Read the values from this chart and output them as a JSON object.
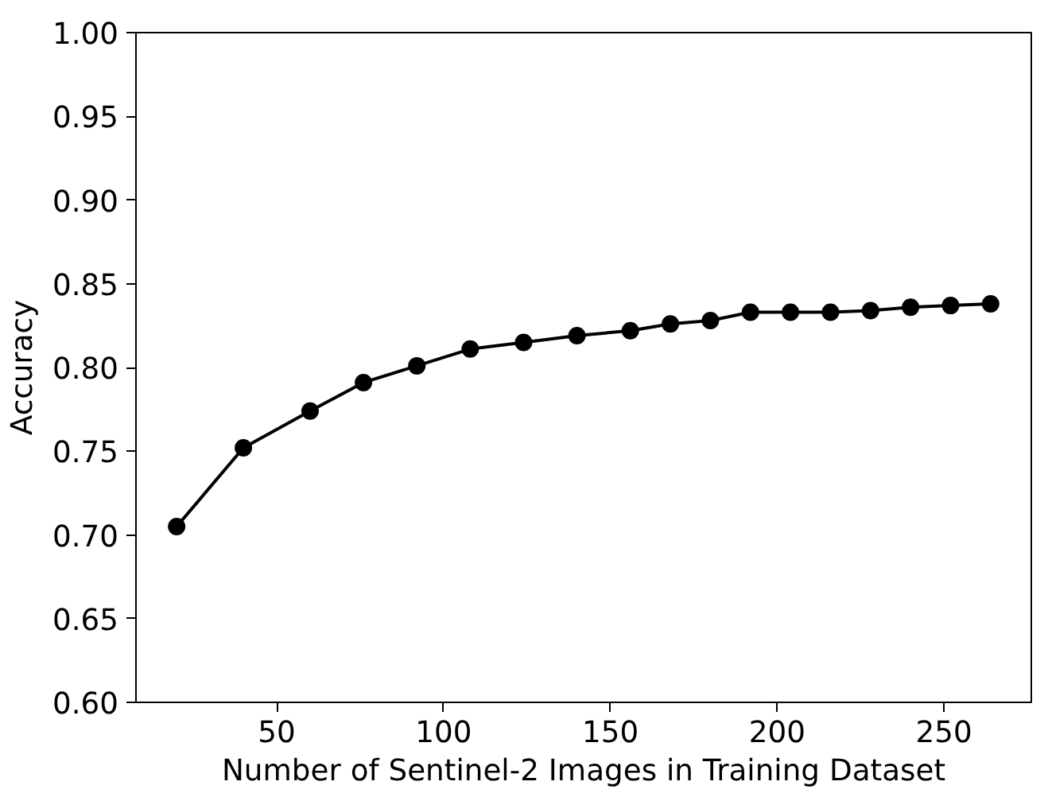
{
  "chart_data": {
    "type": "line",
    "xlabel": "Number of Sentinel-2 Images in Training Dataset",
    "ylabel": "Accuracy",
    "x": [
      20,
      40,
      60,
      76,
      92,
      108,
      124,
      140,
      156,
      168,
      180,
      192,
      204,
      216,
      228,
      240,
      252,
      264
    ],
    "series": [
      {
        "color": "#000000",
        "values": [
          0.705,
          0.752,
          0.774,
          0.791,
          0.801,
          0.811,
          0.815,
          0.819,
          0.822,
          0.826,
          0.828,
          0.833,
          0.833,
          0.833,
          0.834,
          0.836,
          0.837,
          0.838
        ]
      }
    ],
    "xlim": [
      7.8,
      276.2
    ],
    "xticks": [
      50,
      100,
      150,
      200,
      250
    ],
    "ylim": [
      0.6,
      1.0
    ],
    "yticks": [
      {
        "value": 0.6,
        "label": "0.60"
      },
      {
        "value": 0.65,
        "label": "0.65"
      },
      {
        "value": 0.7,
        "label": "0.70"
      },
      {
        "value": 0.75,
        "label": "0.75"
      },
      {
        "value": 0.8,
        "label": "0.80"
      },
      {
        "value": 0.85,
        "label": "0.85"
      },
      {
        "value": 0.9,
        "label": "0.90"
      },
      {
        "value": 0.95,
        "label": "0.95"
      },
      {
        "value": 1.0,
        "label": "1.00"
      }
    ],
    "marker": "circle",
    "line_style": "solid"
  }
}
